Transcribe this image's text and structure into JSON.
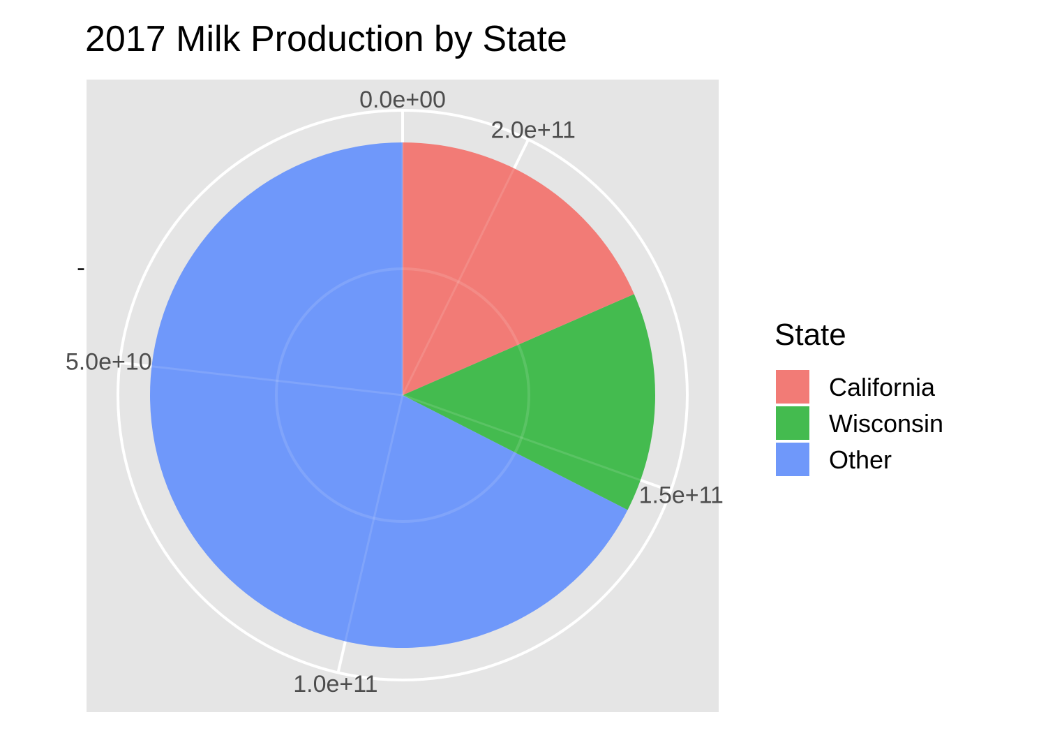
{
  "chart_data": {
    "type": "pie",
    "title": "2017 Milk Production by State",
    "ylabel": "-",
    "slices": [
      {
        "label": "California",
        "value": 39800000000,
        "color": "#F27B76"
      },
      {
        "label": "Wisconsin",
        "value": 30300000000,
        "color": "#44BB4F"
      },
      {
        "label": "Other",
        "value": 145600000000,
        "color": "#6F98FA"
      }
    ],
    "total": 215700000000,
    "axis_ticks": [
      {
        "value": 0,
        "label": "0.0e+00"
      },
      {
        "value": 50000000000,
        "label": "5.0e+10"
      },
      {
        "value": 100000000000,
        "label": "1.0e+11"
      },
      {
        "value": 150000000000,
        "label": "1.5e+11"
      },
      {
        "value": 200000000000,
        "label": "2.0e+11"
      }
    ],
    "legend": {
      "title": "State",
      "position": "right"
    },
    "panel_background": "#E5E5E5",
    "grid": true
  }
}
